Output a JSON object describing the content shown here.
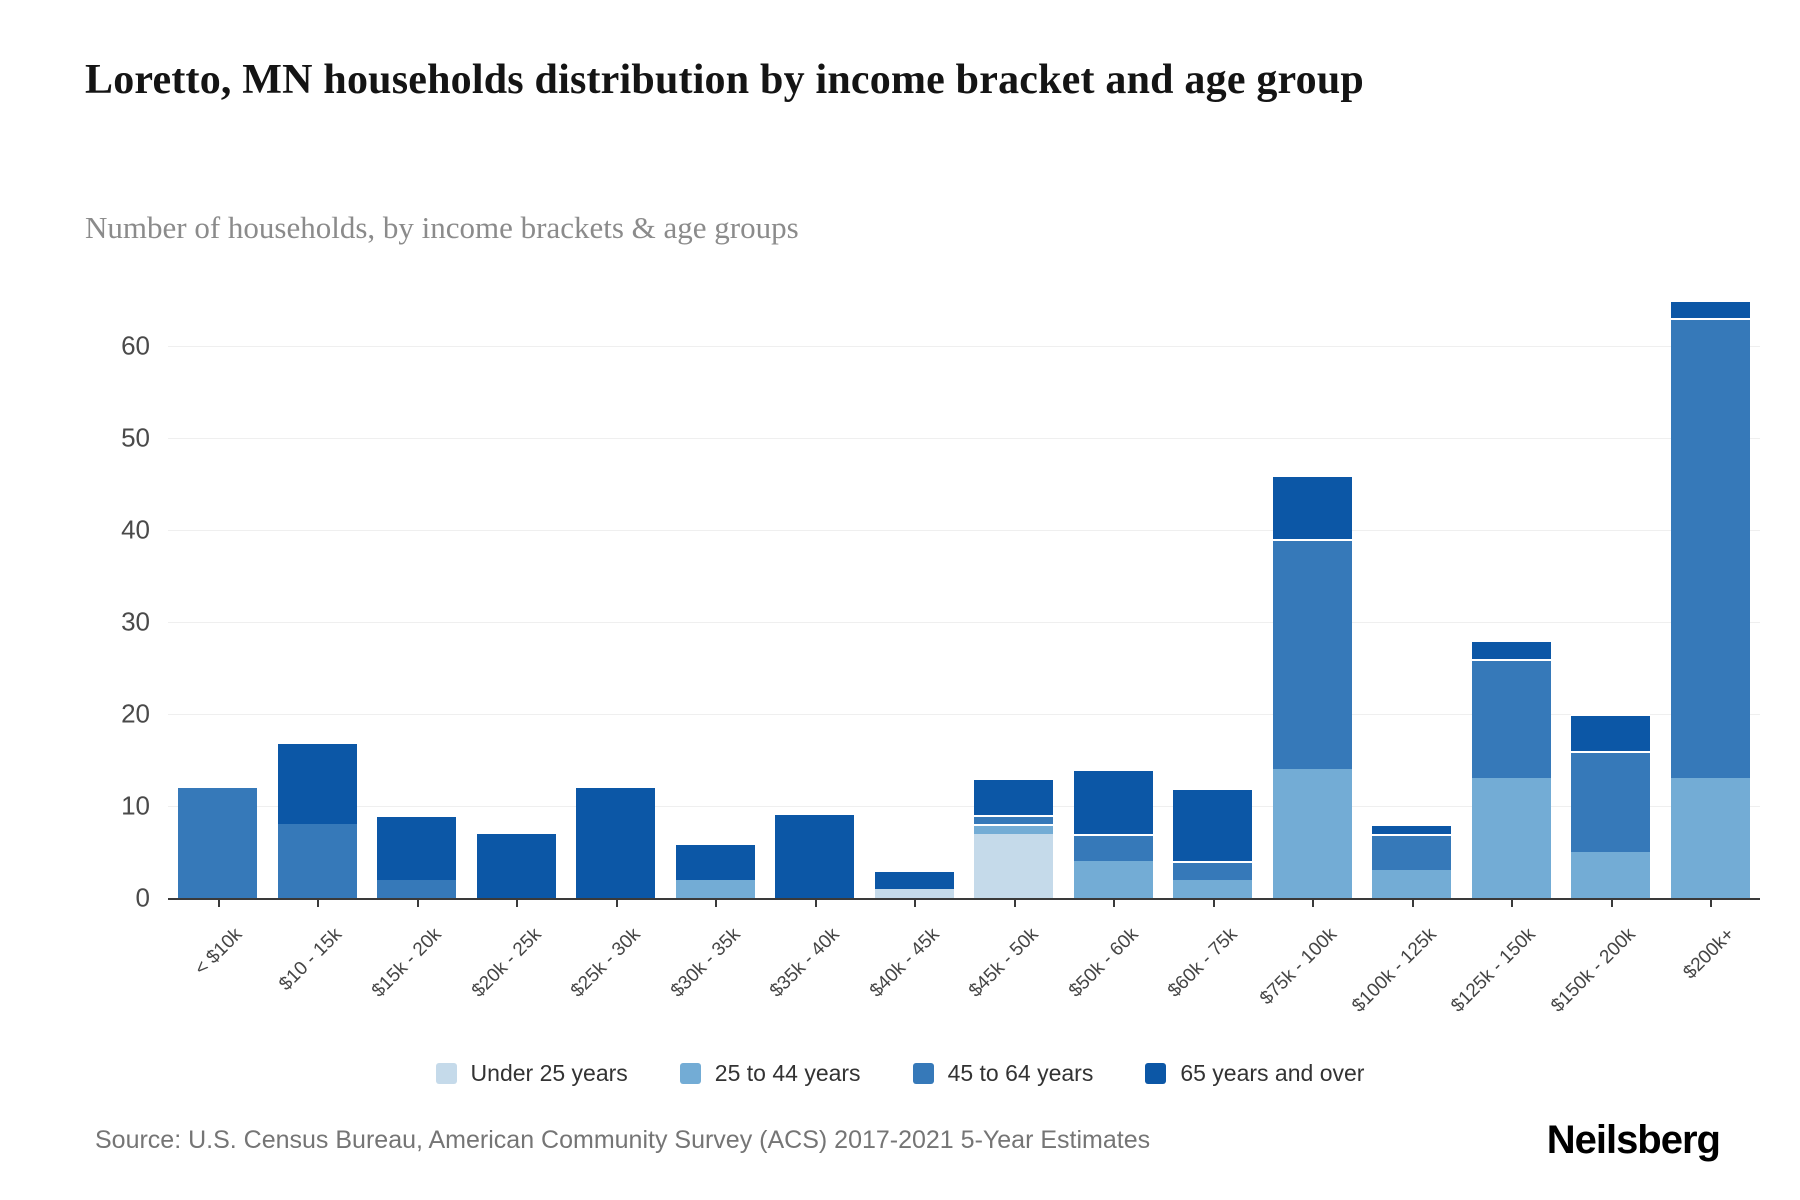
{
  "title": "Loretto, MN households distribution by income bracket and age group",
  "subtitle": "Number of households, by income brackets & age groups",
  "source": "Source: U.S. Census Bureau, American Community Survey (ACS) 2017-2021 5-Year Estimates",
  "brand": "Neilsberg",
  "colors": {
    "under25": "#c5daea",
    "age25to44": "#73acd5",
    "age45to64": "#3679b9",
    "age65plus": "#0c57a6",
    "grid": "#efefef",
    "axis": "#3a3a3a",
    "tick_label": "#4a4a4a"
  },
  "chart_data": {
    "type": "bar",
    "stacked": true,
    "grid": true,
    "legend_position": "bottom",
    "title": "Loretto, MN households distribution by income bracket and age group",
    "xlabel": "",
    "ylabel": "",
    "ylim": [
      0,
      65
    ],
    "yticks": [
      0,
      10,
      20,
      30,
      40,
      50,
      60
    ],
    "categories": [
      "< $10k",
      "$10 - 15k",
      "$15k - 20k",
      "$20k - 25k",
      "$25k - 30k",
      "$30k - 35k",
      "$35k - 40k",
      "$40k - 45k",
      "$45k - 50k",
      "$50k - 60k",
      "$60k - 75k",
      "$75k - 100k",
      "$100k - 125k",
      "$125k - 150k",
      "$150k - 200k",
      "$200k+"
    ],
    "series": [
      {
        "name": "Under 25 years",
        "color_key": "under25",
        "values": [
          0,
          0,
          0,
          0,
          0,
          0,
          0,
          1,
          7,
          0,
          0,
          0,
          0,
          0,
          0,
          0
        ]
      },
      {
        "name": "25 to 44 years",
        "color_key": "age25to44",
        "values": [
          0,
          0,
          0,
          0,
          0,
          2,
          0,
          0,
          1,
          4,
          2,
          14,
          3,
          13,
          5,
          13
        ]
      },
      {
        "name": "45 to 64 years",
        "color_key": "age45to64",
        "values": [
          12,
          8,
          2,
          0,
          0,
          0,
          0,
          0,
          1,
          3,
          2,
          25,
          4,
          13,
          11,
          50
        ]
      },
      {
        "name": "65 years and over",
        "color_key": "age65plus",
        "values": [
          0,
          9,
          7,
          7,
          12,
          4,
          9,
          2,
          4,
          7,
          8,
          7,
          1,
          2,
          4,
          2
        ]
      }
    ],
    "totals": [
      12,
      17,
      9,
      7,
      12,
      6,
      9,
      3,
      13,
      14,
      12,
      46,
      8,
      28,
      20,
      65
    ]
  }
}
